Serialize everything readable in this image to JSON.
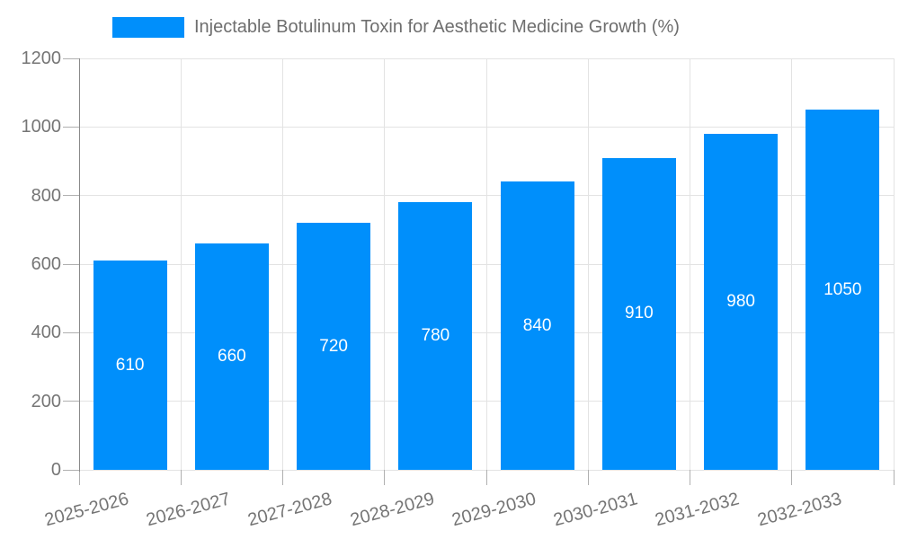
{
  "legend": {
    "label": "Injectable Botulinum Toxin for Aesthetic Medicine Growth (%)"
  },
  "chart_data": {
    "type": "bar",
    "title": "",
    "categories": [
      "2025-2026",
      "2026-2027",
      "2027-2028",
      "2028-2029",
      "2029-2030",
      "2030-2031",
      "2031-2032",
      "2032-2033"
    ],
    "series": [
      {
        "name": "Injectable Botulinum Toxin for Aesthetic Medicine Growth (%)",
        "values": [
          610,
          660,
          720,
          780,
          840,
          910,
          980,
          1050
        ]
      }
    ],
    "data_labels": [
      "610",
      "660",
      "720",
      "780",
      "840",
      "910",
      "980",
      "1050"
    ],
    "xlabel": "",
    "ylabel": "",
    "ylim": [
      0,
      1200
    ],
    "yticks": [
      0,
      200,
      400,
      600,
      800,
      1000,
      1200
    ],
    "grid": true,
    "legend_position": "top",
    "colors": {
      "bar": "#008FFB",
      "data_label": "#FFFFFF",
      "axis_label": "#757575",
      "legend_label": "#6E6E6E",
      "gridline": "#E3E3E3",
      "axis_line": "#8A8A8A",
      "tick": "#B0B0B0",
      "background": "#FFFFFF"
    }
  }
}
